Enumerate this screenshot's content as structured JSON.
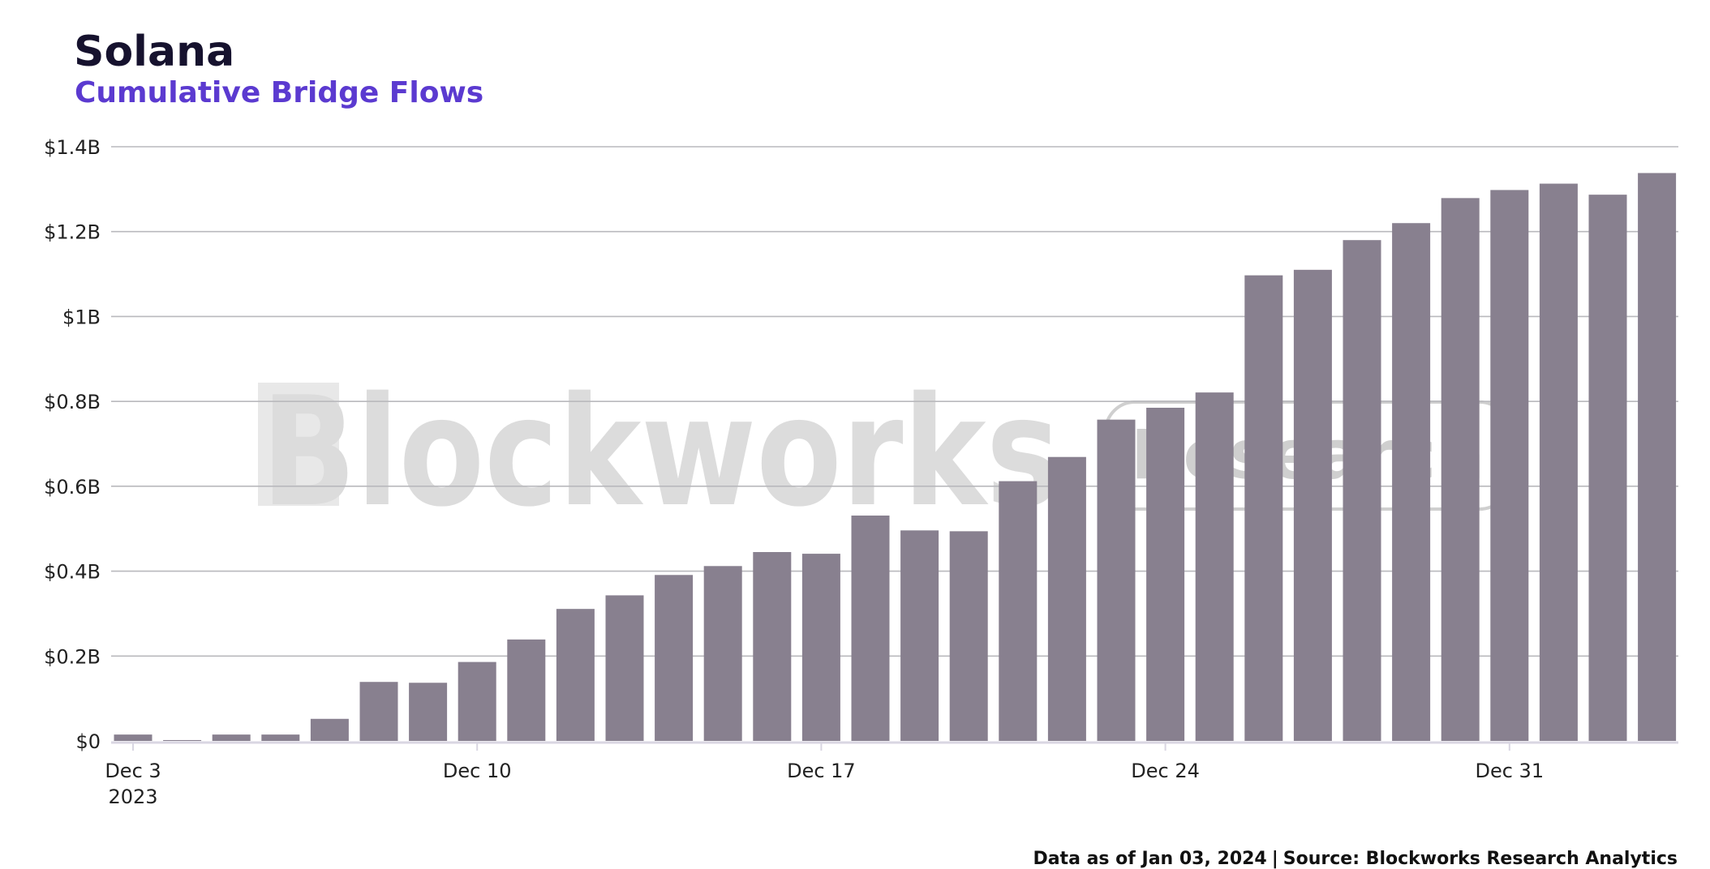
{
  "header": {
    "title": "Solana",
    "subtitle": "Cumulative Bridge Flows"
  },
  "footer": {
    "data_as_of": "Data as of Jan 03, 2024",
    "separator": "|",
    "source": "Source: Blockworks Research Analytics"
  },
  "watermark": {
    "brand": "Blockworks",
    "badge": "Research"
  },
  "colors": {
    "bar": "#88808f",
    "title": "#16122e",
    "subtitle": "#5b3ad0",
    "grid": "#b9b9bd",
    "axis": "#d9d6e2"
  },
  "chart_data": {
    "type": "bar",
    "x": [
      "2023-12-03",
      "2023-12-04",
      "2023-12-05",
      "2023-12-06",
      "2023-12-07",
      "2023-12-08",
      "2023-12-09",
      "2023-12-10",
      "2023-12-11",
      "2023-12-12",
      "2023-12-13",
      "2023-12-14",
      "2023-12-15",
      "2023-12-16",
      "2023-12-17",
      "2023-12-18",
      "2023-12-19",
      "2023-12-20",
      "2023-12-21",
      "2023-12-22",
      "2023-12-23",
      "2023-12-24",
      "2023-12-25",
      "2023-12-26",
      "2023-12-27",
      "2023-12-28",
      "2023-12-29",
      "2023-12-30",
      "2023-12-31",
      "2024-01-01",
      "2024-01-02",
      "2024-01-03"
    ],
    "values": [
      0.015,
      0.002,
      0.015,
      0.015,
      0.052,
      0.139,
      0.137,
      0.186,
      0.239,
      0.311,
      0.343,
      0.391,
      0.412,
      0.445,
      0.441,
      0.531,
      0.496,
      0.494,
      0.612,
      0.669,
      0.757,
      0.785,
      0.821,
      1.097,
      1.11,
      1.18,
      1.22,
      1.279,
      1.298,
      1.313,
      1.287,
      1.338
    ],
    "value_unit": "billion USD",
    "ylim": [
      0,
      1.4
    ],
    "y_ticks": [
      {
        "value": 0,
        "label": "$0"
      },
      {
        "value": 0.2,
        "label": "$0.2B"
      },
      {
        "value": 0.4,
        "label": "$0.4B"
      },
      {
        "value": 0.6,
        "label": "$0.6B"
      },
      {
        "value": 0.8,
        "label": "$0.8B"
      },
      {
        "value": 1.0,
        "label": "$1B"
      },
      {
        "value": 1.2,
        "label": "$1.2B"
      },
      {
        "value": 1.4,
        "label": "$1.4B"
      }
    ],
    "x_ticks": [
      {
        "date": "2023-12-03",
        "label": "Dec 3",
        "sublabel": "2023"
      },
      {
        "date": "2023-12-10",
        "label": "Dec 10"
      },
      {
        "date": "2023-12-17",
        "label": "Dec 17"
      },
      {
        "date": "2023-12-24",
        "label": "Dec 24"
      },
      {
        "date": "2023-12-31",
        "label": "Dec 31"
      }
    ],
    "grid": true,
    "legend": false
  }
}
